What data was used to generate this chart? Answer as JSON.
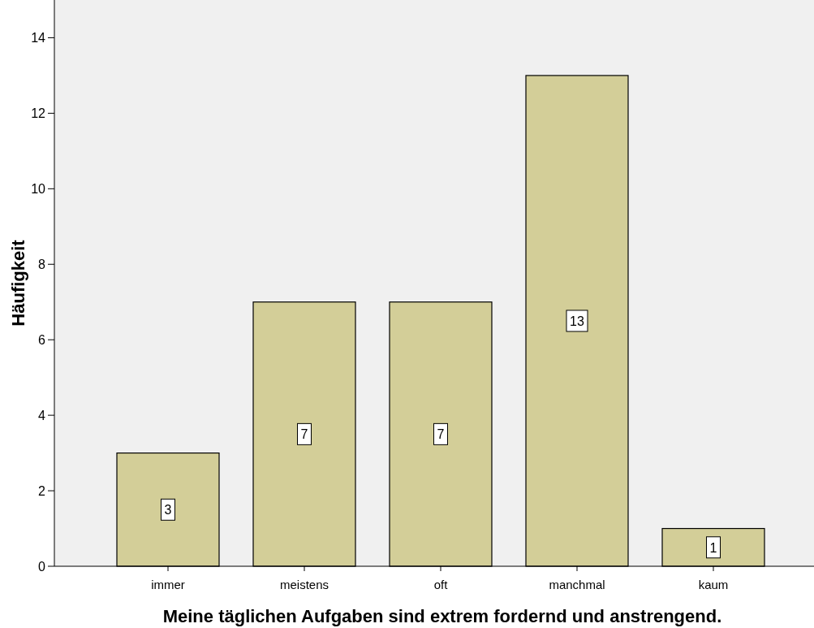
{
  "chart_data": {
    "type": "bar",
    "xlabel": "Meine täglichen Aufgaben sind extrem fordernd und anstrengend.",
    "ylabel": "Häufigkeit",
    "categories": [
      "immer",
      "meistens",
      "oft",
      "manchmal",
      "kaum"
    ],
    "values": [
      3,
      7,
      7,
      13,
      1
    ],
    "color": "#d3ce98",
    "ylim": [
      0,
      15
    ],
    "yticks": [
      0,
      2,
      4,
      6,
      8,
      10,
      12,
      14
    ],
    "grid": false,
    "data_labels": true
  }
}
